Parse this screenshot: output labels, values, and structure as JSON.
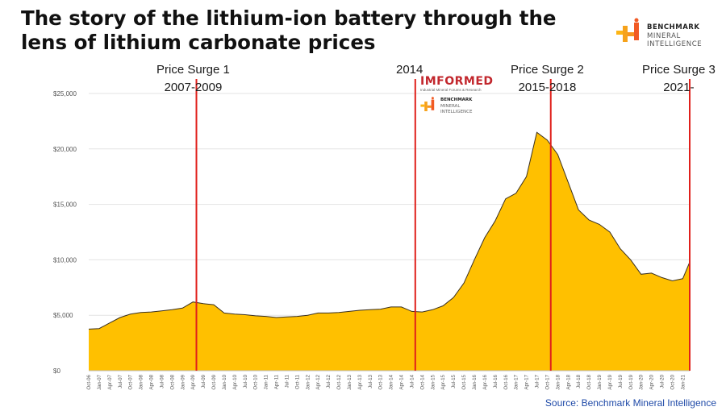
{
  "title": {
    "line1": "The story of the lithium-ion battery through the",
    "line2": "lens of lithium carbonate prices"
  },
  "logos": {
    "benchmark_top": {
      "name": "BENCHMARK",
      "line2": "MINERAL",
      "line3": "INTELLIGENCE",
      "icon": "benchmark-logo-icon"
    },
    "informed": {
      "name": "IMFORMED",
      "sub": "Industrial Mineral Forums & Research"
    },
    "benchmark_small": {
      "name": "BENCHMARK",
      "line2": "MINERAL",
      "line3": "INTELLIGENCE",
      "icon": "benchmark-logo-icon"
    }
  },
  "source": "Source: Benchmark Mineral Intelligence",
  "colors": {
    "area": "#FFC000",
    "outline": "#3a3020",
    "markers": "#e0201b",
    "grid": "#e3e3e3",
    "axis_text": "#555555"
  },
  "chart_data": {
    "type": "area",
    "title": "The story of the lithium-ion battery through the lens of lithium carbonate prices",
    "xlabel": "",
    "ylabel": "",
    "ylim": [
      0,
      25000
    ],
    "yticks": [
      "$0",
      "$5,000",
      "$10,000",
      "$15,000",
      "$20,000",
      "$25,000"
    ],
    "ytick_values": [
      0,
      5000,
      10000,
      15000,
      20000,
      25000
    ],
    "xtick_labels": [
      "Oct-06",
      "Jan-07",
      "Apr-07",
      "Jul-07",
      "Oct-07",
      "Jan-08",
      "Apr-08",
      "Jul-08",
      "Oct-08",
      "Jan-09",
      "Apr-09",
      "Jul-09",
      "Oct-09",
      "Jan-10",
      "Apr-10",
      "Jul-10",
      "Oct-10",
      "Jan-11",
      "Apr-11",
      "Jul-11",
      "Oct-11",
      "Jan-12",
      "Apr-12",
      "Jul-12",
      "Oct-12",
      "Jan-13",
      "Apr-13",
      "Jul-13",
      "Oct-13",
      "Jan-14",
      "Apr-14",
      "Jul-14",
      "Oct-14",
      "Jan-15",
      "Apr-15",
      "Jul-15",
      "Oct-15",
      "Jan-16",
      "Apr-16",
      "Jul-16",
      "Oct-16",
      "Jan-17",
      "Apr-17",
      "Jul-17",
      "Oct-17",
      "Jan-18",
      "Apr-18",
      "Jul-18",
      "Oct-18",
      "Jan-19",
      "Apr-19",
      "Jul-19",
      "Oct-19",
      "Jan-20",
      "Apr-20",
      "Jul-20",
      "Oct-20",
      "Jan-21"
    ],
    "grid": true,
    "legend": "none",
    "series": [
      {
        "points": [
          [
            "Oct-06",
            3750
          ],
          [
            "Jan-07",
            3800
          ],
          [
            "Apr-07",
            4300
          ],
          [
            "Jul-07",
            4800
          ],
          [
            "Oct-07",
            5100
          ],
          [
            "Jan-08",
            5250
          ],
          [
            "Apr-08",
            5300
          ],
          [
            "Jul-08",
            5400
          ],
          [
            "Oct-08",
            5500
          ],
          [
            "Jan-09",
            5650
          ],
          [
            "Apr-09",
            6200
          ],
          [
            "Jul-09",
            6050
          ],
          [
            "Oct-09",
            5950
          ],
          [
            "Jan-10",
            5200
          ],
          [
            "Apr-10",
            5100
          ],
          [
            "Jul-10",
            5050
          ],
          [
            "Oct-10",
            4950
          ],
          [
            "Jan-11",
            4900
          ],
          [
            "Apr-11",
            4800
          ],
          [
            "Jul-11",
            4850
          ],
          [
            "Oct-11",
            4900
          ],
          [
            "Jan-12",
            5000
          ],
          [
            "Apr-12",
            5200
          ],
          [
            "Jul-12",
            5200
          ],
          [
            "Oct-12",
            5250
          ],
          [
            "Jan-13",
            5350
          ],
          [
            "Apr-13",
            5450
          ],
          [
            "Jul-13",
            5500
          ],
          [
            "Oct-13",
            5550
          ],
          [
            "Jan-14",
            5750
          ],
          [
            "Apr-14",
            5750
          ],
          [
            "Jul-14",
            5350
          ],
          [
            "Oct-14",
            5300
          ],
          [
            "Jan-15",
            5500
          ],
          [
            "Apr-15",
            5850
          ],
          [
            "Jul-15",
            6600
          ],
          [
            "Oct-15",
            7900
          ],
          [
            "Jan-16",
            10000
          ],
          [
            "Apr-16",
            12000
          ],
          [
            "Jul-16",
            13500
          ],
          [
            "Oct-16",
            15500
          ],
          [
            "Jan-17",
            16000
          ],
          [
            "Apr-17",
            17500
          ],
          [
            "Jul-17",
            21500
          ],
          [
            "Oct-17",
            20800
          ],
          [
            "Jan-18",
            19500
          ],
          [
            "Apr-18",
            17000
          ],
          [
            "Jul-18",
            14500
          ],
          [
            "Oct-18",
            13600
          ],
          [
            "Jan-19",
            13200
          ],
          [
            "Apr-19",
            12500
          ],
          [
            "Jul-19",
            11000
          ],
          [
            "Oct-19",
            10000
          ],
          [
            "Jan-20",
            8700
          ],
          [
            "Apr-20",
            8800
          ],
          [
            "Jul-20",
            8400
          ],
          [
            "Oct-20",
            8100
          ],
          [
            "Jan-21",
            8300
          ],
          [
            "Mar-21",
            9800
          ]
        ]
      }
    ],
    "annotations": [
      {
        "line1": "Price Surge 1",
        "line2": "2007-2009",
        "x": "May-09"
      },
      {
        "line1": "2014",
        "line2": "",
        "x": "Aug-14"
      },
      {
        "line1": "Price Surge 2",
        "line2": "2015-2018",
        "x": "Nov-17"
      },
      {
        "line1": "Price Surge 3",
        "line2": "2021-",
        "x": "Mar-21"
      }
    ]
  }
}
